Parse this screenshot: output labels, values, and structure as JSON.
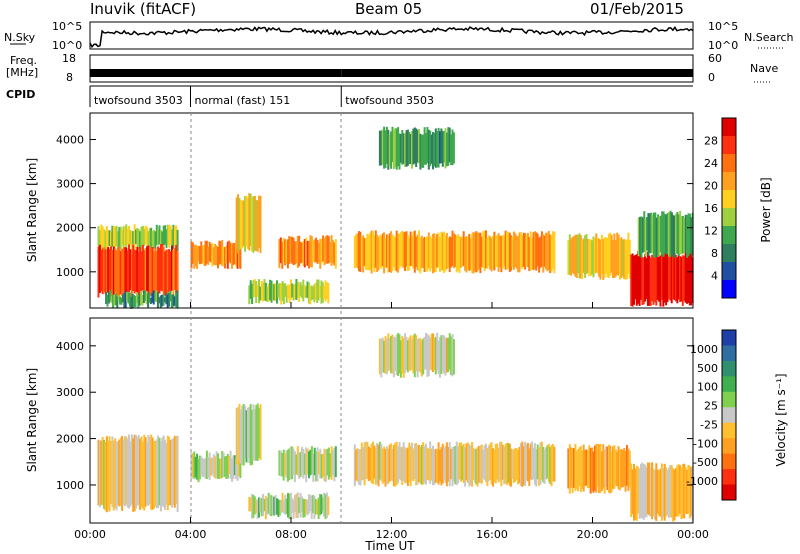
{
  "header": {
    "station": "Inuvik (fitACF)",
    "beam": "Beam 05",
    "date": "01/Feb/2015"
  },
  "top_panels": {
    "nsky_label": "N.Sky",
    "nsky_ticks": [
      "10^5",
      "10^0"
    ],
    "nsearch_label": "N.Search",
    "freq_label_1": "Freq.",
    "freq_label_2": "[MHz]",
    "freq_ticks": [
      "18",
      "8"
    ],
    "nave_label": "Nave",
    "nave_ticks": [
      "60",
      "0"
    ],
    "cpid_label": "CPID",
    "cpid_segments": [
      {
        "name": "twofsound 3503",
        "start_hour": 0,
        "end_hour": 4
      },
      {
        "name": "normal (fast) 151",
        "start_hour": 4,
        "end_hour": 10
      },
      {
        "name": "twofsound 3503",
        "start_hour": 10,
        "end_hour": 24
      }
    ]
  },
  "power_panel": {
    "ylabel": "Slant Range [km]",
    "yticks": [
      "4000",
      "3000",
      "2000",
      "1000"
    ],
    "colorbar_label": "Power [dB]",
    "colorbar_ticks": [
      "28",
      "24",
      "20",
      "16",
      "12",
      "8",
      "4"
    ]
  },
  "velocity_panel": {
    "ylabel": "Slant Range [km]",
    "yticks": [
      "4000",
      "3000",
      "2000",
      "1000"
    ],
    "colorbar_label": "Velocity [m s⁻¹]",
    "colorbar_ticks": [
      "1000",
      "500",
      "100",
      "25",
      "-25",
      "-100",
      "-500",
      "-1000"
    ]
  },
  "xaxis": {
    "label": "Time UT",
    "ticks": [
      "00:00",
      "04:00",
      "08:00",
      "12:00",
      "16:00",
      "20:00",
      "00:00"
    ]
  },
  "colors": {
    "power_scale": [
      "#0000ff",
      "#1f4fa0",
      "#2f7f5f",
      "#3fa84f",
      "#9fd040",
      "#ffd020",
      "#ffa020",
      "#ff7010",
      "#ff3010",
      "#e00000"
    ],
    "velocity_scale": [
      "#1f3fa8",
      "#2f6ea0",
      "#2f8f6f",
      "#3fb04f",
      "#7fd04f",
      "#c8c8c8",
      "#ffc030",
      "#ffa020",
      "#ff7010",
      "#ff3010",
      "#e00000"
    ]
  },
  "chart_data": [
    {
      "type": "heatmap",
      "title": "Power",
      "xlabel": "Time UT",
      "ylabel": "Slant Range [km]",
      "xlim": [
        0,
        24
      ],
      "ylim": [
        180,
        4600
      ],
      "colorbar": {
        "label": "Power [dB]",
        "range": [
          0,
          32
        ]
      },
      "bands": [
        {
          "t0": 0.3,
          "t1": 3.5,
          "r0": 1550,
          "r1": 2000,
          "value": 14
        },
        {
          "t0": 0.3,
          "t1": 3.5,
          "r0": 500,
          "r1": 1550,
          "value": 26
        },
        {
          "t0": 0.6,
          "t1": 3.5,
          "r0": 250,
          "r1": 500,
          "value": 10
        },
        {
          "t0": 4.0,
          "t1": 6.0,
          "r0": 1150,
          "r1": 1650,
          "value": 22
        },
        {
          "t0": 5.8,
          "t1": 6.8,
          "r0": 1500,
          "r1": 2700,
          "value": 18
        },
        {
          "t0": 7.5,
          "t1": 9.8,
          "r0": 1150,
          "r1": 1750,
          "value": 22
        },
        {
          "t0": 6.3,
          "t1": 9.5,
          "r0": 350,
          "r1": 750,
          "value": 14
        },
        {
          "t0": 10.5,
          "t1": 18.5,
          "r0": 1050,
          "r1": 1850,
          "value": 20
        },
        {
          "t0": 11.5,
          "t1": 14.5,
          "r0": 3400,
          "r1": 4200,
          "value": 10
        },
        {
          "t0": 19.0,
          "t1": 21.5,
          "r0": 900,
          "r1": 1800,
          "value": 18
        },
        {
          "t0": 21.5,
          "t1": 24.0,
          "r0": 300,
          "r1": 1400,
          "value": 30
        },
        {
          "t0": 21.8,
          "t1": 24.0,
          "r0": 1400,
          "r1": 2300,
          "value": 12
        }
      ]
    },
    {
      "type": "heatmap",
      "title": "Velocity",
      "xlabel": "Time UT",
      "ylabel": "Slant Range [km]",
      "xlim": [
        0,
        24
      ],
      "ylim": [
        180,
        4600
      ],
      "colorbar": {
        "label": "Velocity [m s⁻¹]",
        "range": [
          -1000,
          1000
        ]
      },
      "bands": [
        {
          "t0": 0.3,
          "t1": 3.5,
          "r0": 500,
          "r1": 2000,
          "value": -150
        },
        {
          "t0": 4.0,
          "t1": 6.0,
          "r0": 1150,
          "r1": 1650,
          "value": 80
        },
        {
          "t0": 5.8,
          "t1": 6.8,
          "r0": 1500,
          "r1": 2700,
          "value": 120
        },
        {
          "t0": 7.5,
          "t1": 9.8,
          "r0": 1150,
          "r1": 1750,
          "value": 60
        },
        {
          "t0": 6.3,
          "t1": 9.5,
          "r0": 350,
          "r1": 750,
          "value": 90
        },
        {
          "t0": 10.5,
          "t1": 18.5,
          "r0": 1050,
          "r1": 1850,
          "value": -120
        },
        {
          "t0": 11.5,
          "t1": 14.5,
          "r0": 3400,
          "r1": 4200,
          "value": -60
        },
        {
          "t0": 19.0,
          "t1": 21.5,
          "r0": 900,
          "r1": 1800,
          "value": -300
        },
        {
          "t0": 21.5,
          "t1": 24.0,
          "r0": 300,
          "r1": 1400,
          "value": -180
        }
      ]
    }
  ]
}
